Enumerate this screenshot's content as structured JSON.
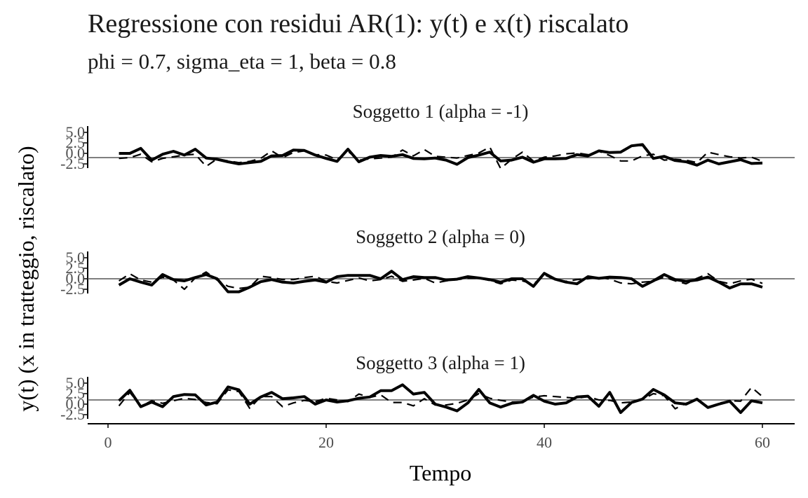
{
  "chart_data": {
    "type": "line",
    "title": "Regressione con residui AR(1): y(t) e x(t) riscalato",
    "subtitle": "phi = 0.7, sigma_eta = 1, beta = 0.8",
    "xlabel": "Tempo",
    "ylabel": "y(t)  (x in tratteggio, riscalato)",
    "xlim": [
      0,
      63
    ],
    "x_ticks": [
      0,
      20,
      40,
      60
    ],
    "x_tick_labels": [
      "0",
      "20",
      "40",
      "60"
    ],
    "ylim": [
      -3.5,
      6.5
    ],
    "y_ticks": [
      5.0,
      2.5,
      0.0,
      -2.5
    ],
    "y_tick_labels": [
      "5.0",
      "2.5",
      "0.0",
      "-2.5"
    ],
    "x": [
      1,
      2,
      3,
      4,
      5,
      6,
      7,
      8,
      9,
      10,
      11,
      12,
      13,
      14,
      15,
      16,
      17,
      18,
      19,
      20,
      21,
      22,
      23,
      24,
      25,
      26,
      27,
      28,
      29,
      30,
      31,
      32,
      33,
      34,
      35,
      36,
      37,
      38,
      39,
      40,
      41,
      42,
      43,
      44,
      45,
      46,
      47,
      48,
      49,
      50,
      51,
      52,
      53,
      54,
      55,
      56,
      57,
      58,
      59,
      60
    ],
    "panels": [
      {
        "label": "Soggetto 1 (alpha = -1)",
        "hline": -1,
        "series": [
          {
            "name": "y(t)",
            "style": "solid",
            "values": [
              0.0,
              0.0,
              1.2,
              -1.6,
              -0.2,
              0.5,
              -0.4,
              1.0,
              -1.1,
              -1.4,
              -2.0,
              -2.5,
              -2.2,
              -1.9,
              -0.6,
              -0.5,
              0.8,
              0.7,
              -0.4,
              -1.2,
              -1.9,
              1.0,
              -2.0,
              -0.9,
              -0.5,
              -0.7,
              -0.3,
              -1.2,
              -1.3,
              -1.1,
              -1.6,
              -2.6,
              -1.0,
              -0.4,
              0.3,
              -1.8,
              -1.6,
              -0.9,
              -2.1,
              -1.3,
              -1.3,
              -1.2,
              -0.3,
              -0.6,
              0.6,
              0.2,
              0.3,
              1.8,
              2.1,
              -1.2,
              -0.7,
              -1.7,
              -2.0,
              -2.8,
              -1.6,
              -2.5,
              -2.0,
              -1.5,
              -2.4,
              -2.3
            ]
          },
          {
            "name": "x(t) riscalato",
            "style": "dashed",
            "values": [
              -1.2,
              -1.0,
              -0.2,
              -2.0,
              -1.2,
              -0.8,
              -0.4,
              -0.2,
              -3.1,
              -1.3,
              -1.8,
              -2.2,
              -1.9,
              -1.2,
              0.6,
              -1.0,
              0.2,
              0.6,
              -0.3,
              -0.4,
              -1.5,
              0.5,
              -1.6,
              -1.3,
              -1.1,
              -0.9,
              0.8,
              -0.6,
              0.9,
              -0.7,
              -0.9,
              -1.1,
              -0.5,
              0.1,
              1.5,
              -3.6,
              -1.4,
              0.3,
              -1.8,
              -0.9,
              -0.6,
              -0.1,
              0.1,
              -0.3,
              0.5,
              -0.5,
              -1.8,
              -1.8,
              -0.6,
              -0.2,
              -1.6,
              -1.4,
              -1.6,
              -2.2,
              0.3,
              -0.3,
              -0.8,
              -1.1,
              -0.9,
              -1.9
            ]
          }
        ]
      },
      {
        "label": "Soggetto 2 (alpha = 0)",
        "hline": 0,
        "series": [
          {
            "name": "y(t)",
            "style": "solid",
            "values": [
              -1.5,
              0.0,
              -0.8,
              -1.5,
              1.0,
              -0.2,
              -0.5,
              0.3,
              1.0,
              0.0,
              -3.1,
              -3.1,
              -2.0,
              -0.7,
              -0.2,
              -0.8,
              -1.0,
              -0.6,
              -0.3,
              -0.8,
              0.5,
              0.8,
              0.8,
              0.8,
              0.0,
              1.8,
              -0.2,
              0.5,
              0.3,
              0.3,
              -0.3,
              -0.1,
              0.5,
              0.2,
              -0.2,
              -0.8,
              0.0,
              0.0,
              -1.8,
              1.3,
              -0.1,
              -0.8,
              -1.2,
              0.5,
              0.1,
              0.4,
              0.3,
              0.0,
              -1.8,
              -0.5,
              1.0,
              -0.2,
              -0.6,
              -0.3,
              0.4,
              -0.8,
              -2.2,
              -1.2,
              -1.2,
              -2.0
            ]
          },
          {
            "name": "x(t) riscalato",
            "style": "dashed",
            "values": [
              -0.5,
              1.2,
              -0.3,
              -0.8,
              0.4,
              -0.3,
              -2.5,
              0.2,
              1.6,
              -0.3,
              -1.8,
              -2.3,
              -2.0,
              0.6,
              0.3,
              -0.2,
              -0.2,
              0.3,
              0.6,
              -0.6,
              -1.0,
              -0.4,
              0.2,
              -0.5,
              -0.2,
              0.6,
              -0.6,
              -0.3,
              0.1,
              -1.0,
              -0.5,
              -0.2,
              0.1,
              0.1,
              -0.4,
              -1.2,
              -0.3,
              -0.5,
              -1.3,
              1.0,
              -0.3,
              -0.6,
              -0.2,
              0.0,
              0.4,
              -0.1,
              -1.0,
              -1.2,
              -0.8,
              -0.6,
              0.4,
              -0.5,
              -1.2,
              0.1,
              1.2,
              -0.6,
              -1.2,
              -0.5,
              -0.1,
              -1.1
            ]
          }
        ]
      },
      {
        "label": "Soggetto 3 (alpha = 1)",
        "hline": 1,
        "series": [
          {
            "name": "y(t)",
            "style": "solid",
            "values": [
              0.8,
              3.3,
              -0.6,
              0.5,
              -0.6,
              1.8,
              2.3,
              2.2,
              -0.2,
              0.5,
              4.1,
              3.4,
              0.0,
              1.7,
              2.8,
              1.3,
              1.5,
              1.8,
              0.0,
              1.0,
              0.5,
              0.8,
              1.4,
              1.7,
              3.2,
              3.2,
              4.6,
              2.4,
              2.8,
              0.0,
              -0.7,
              -1.6,
              0.3,
              3.5,
              0.3,
              -0.7,
              0.2,
              0.5,
              2.1,
              0.7,
              0.0,
              0.3,
              1.7,
              1.9,
              -0.5,
              2.8,
              -2.0,
              0.4,
              1.2,
              3.5,
              2.2,
              0.3,
              0.0,
              1.2,
              -0.8,
              0.0,
              0.7,
              -2.0,
              0.8,
              0.3
            ]
          },
          {
            "name": "x(t) riscalato",
            "style": "dashed",
            "values": [
              -0.4,
              2.8,
              -0.5,
              0.8,
              0.2,
              0.8,
              1.4,
              1.1,
              0.4,
              0.1,
              3.4,
              3.0,
              -1.0,
              1.8,
              1.8,
              -0.6,
              0.3,
              0.9,
              0.6,
              1.4,
              1.0,
              0.6,
              2.4,
              1.6,
              2.2,
              0.4,
              0.4,
              -0.4,
              1.3,
              -0.2,
              -0.2,
              0.2,
              1.0,
              2.5,
              1.4,
              0.9,
              0.5,
              0.6,
              1.7,
              2.0,
              1.8,
              1.6,
              1.4,
              1.8,
              1.0,
              0.9,
              0.3,
              0.5,
              1.1,
              2.5,
              2.0,
              -1.1,
              0.2,
              1.0,
              -0.9,
              0.2,
              0.8,
              0.7,
              4.0,
              1.8
            ]
          }
        ]
      }
    ]
  }
}
